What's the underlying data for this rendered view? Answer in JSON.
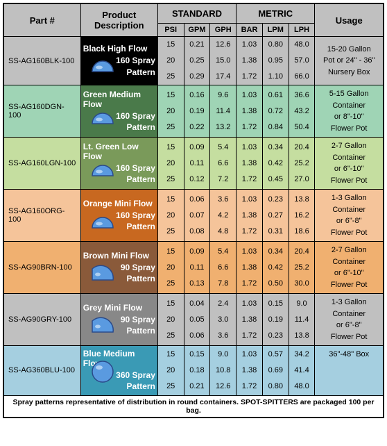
{
  "headers": {
    "part": "Part #",
    "desc": "Product Description",
    "standard": "STANDARD",
    "metric": "METRIC",
    "usage": "Usage",
    "psi": "PSI",
    "gpm": "GPM",
    "gph": "GPH",
    "bar": "BAR",
    "lpm": "LPM",
    "lph": "LPH"
  },
  "rows": [
    {
      "part": "SS-AG160BLK-100",
      "title": "Black High Flow",
      "sub1": "160 Spray",
      "sub2": "Pattern",
      "icon_shape": "semi",
      "desc_bg": "#000000",
      "row_bg": "#c0c0c0",
      "psi": [
        "15",
        "20",
        "25"
      ],
      "gpm": [
        "0.21",
        "0.25",
        "0.29"
      ],
      "gph": [
        "12.6",
        "15.0",
        "17.4"
      ],
      "bar": [
        "1.03",
        "1.38",
        "1.72"
      ],
      "lpm": [
        "0.80",
        "0.95",
        "1.10"
      ],
      "lph": [
        "48.0",
        "57.0",
        "66.0"
      ],
      "usage": [
        "15-20 Gallon",
        "Pot or 24\" - 36\"",
        "Nursery Box"
      ]
    },
    {
      "part": "SS-AG160DGN-100",
      "title": "Green Medium Flow",
      "sub1": "160 Spray",
      "sub2": "Pattern",
      "icon_shape": "semi",
      "desc_bg": "#4a7a4a",
      "row_bg": "#9fd4b5",
      "psi": [
        "15",
        "20",
        "25"
      ],
      "gpm": [
        "0.16",
        "0.19",
        "0.22"
      ],
      "gph": [
        "9.6",
        "11.4",
        "13.2"
      ],
      "bar": [
        "1.03",
        "1.38",
        "1.72"
      ],
      "lpm": [
        "0.61",
        "0.72",
        "0.84"
      ],
      "lph": [
        "36.6",
        "43.2",
        "50.4"
      ],
      "usage": [
        "5-15 Gallon",
        "Container",
        "or 8\"-10\"",
        "Flower Pot"
      ]
    },
    {
      "part": "SS-AG160LGN-100",
      "title": "Lt. Green Low Flow",
      "sub1": "160 Spray",
      "sub2": "Pattern",
      "icon_shape": "semi",
      "desc_bg": "#7a9a5a",
      "row_bg": "#c5dea0",
      "psi": [
        "15",
        "20",
        "25"
      ],
      "gpm": [
        "0.09",
        "0.11",
        "0.12"
      ],
      "gph": [
        "5.4",
        "6.6",
        "7.2"
      ],
      "bar": [
        "1.03",
        "1.38",
        "1.72"
      ],
      "lpm": [
        "0.34",
        "0.42",
        "0.45"
      ],
      "lph": [
        "20.4",
        "25.2",
        "27.0"
      ],
      "usage": [
        "2-7 Gallon",
        "Container",
        "or 6\"-10\"",
        "Flower Pot"
      ]
    },
    {
      "part": "SS-AG160ORG-100",
      "title": "Orange Mini Flow",
      "sub1": "160 Spray",
      "sub2": "Pattern",
      "icon_shape": "semi",
      "desc_bg": "#c86820",
      "row_bg": "#f5c49a",
      "psi": [
        "15",
        "20",
        "25"
      ],
      "gpm": [
        "0.06",
        "0.07",
        "0.08"
      ],
      "gph": [
        "3.6",
        "4.2",
        "4.8"
      ],
      "bar": [
        "1.03",
        "1.38",
        "1.72"
      ],
      "lpm": [
        "0.23",
        "0.27",
        "0.31"
      ],
      "lph": [
        "13.8",
        "16.2",
        "18.6"
      ],
      "usage": [
        "1-3 Gallon",
        "Container",
        "or 6\"-8\"",
        "Flower Pot"
      ]
    },
    {
      "part": "SS-AG90BRN-100",
      "title": "Brown Mini Flow",
      "sub1": "90 Spray",
      "sub2": "Pattern",
      "icon_shape": "quarter",
      "desc_bg": "#8a5a3a",
      "row_bg": "#f0b070",
      "psi": [
        "15",
        "20",
        "25"
      ],
      "gpm": [
        "0.09",
        "0.11",
        "0.13"
      ],
      "gph": [
        "5.4",
        "6.6",
        "7.8"
      ],
      "bar": [
        "1.03",
        "1.38",
        "1.72"
      ],
      "lpm": [
        "0.34",
        "0.42",
        "0.50"
      ],
      "lph": [
        "20.4",
        "25.2",
        "30.0"
      ],
      "usage": [
        "2-7 Gallon",
        "Container",
        "or 6\"-10\"",
        "Flower Pot"
      ]
    },
    {
      "part": "SS-AG90GRY-100",
      "title": "Grey Mini Flow",
      "sub1": "90 Spray",
      "sub2": "Pattern",
      "icon_shape": "quarter",
      "desc_bg": "#888888",
      "row_bg": "#c0c0c0",
      "psi": [
        "15",
        "20",
        "25"
      ],
      "gpm": [
        "0.04",
        "0.05",
        "0.06"
      ],
      "gph": [
        "2.4",
        "3.0",
        "3.6"
      ],
      "bar": [
        "1.03",
        "1.38",
        "1.72"
      ],
      "lpm": [
        "0.15",
        "0.19",
        "0.23"
      ],
      "lph": [
        "9.0",
        "11.4",
        "13.8"
      ],
      "usage": [
        "1-3 Gallon",
        "Container",
        "or 6\"-8\"",
        "Flower Pot"
      ]
    },
    {
      "part": "SS-AG360BLU-100",
      "title": "Blue Medium Flow",
      "sub1": "360 Spray",
      "sub2": "Pattern",
      "icon_shape": "full",
      "desc_bg": "#3a9ab5",
      "row_bg": "#a5cfe0",
      "psi": [
        "15",
        "20",
        "25"
      ],
      "gpm": [
        "0.15",
        "0.18",
        "0.21"
      ],
      "gph": [
        "9.0",
        "10.8",
        "12.6"
      ],
      "bar": [
        "1.03",
        "1.38",
        "1.72"
      ],
      "lpm": [
        "0.57",
        "0.69",
        "0.80"
      ],
      "lph": [
        "34.2",
        "41.4",
        "48.0"
      ],
      "usage": [
        "36\"-48\" Box"
      ]
    }
  ],
  "footnote": "Spray patterns representative of distribution in round containers. SPOT-SPITTERS are packaged 100 per bag.",
  "icon_colors": {
    "fill": "#5a9ae0",
    "stroke": "#2a4a8a"
  }
}
